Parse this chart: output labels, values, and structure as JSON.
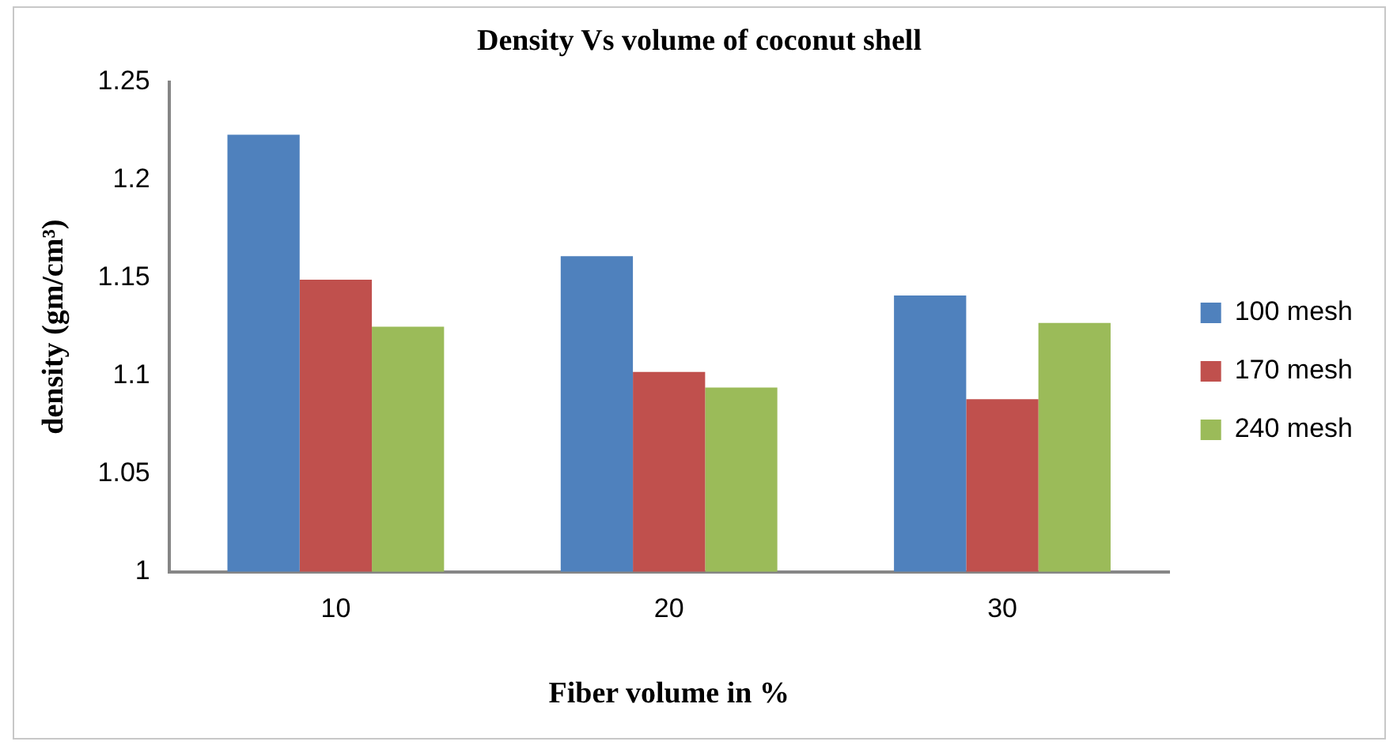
{
  "chart_data": {
    "type": "bar",
    "title": "Density Vs volume of coconut shell",
    "xlabel": "Fiber volume in %",
    "ylabel": "density (gm/cm³)",
    "categories": [
      "10",
      "20",
      "30"
    ],
    "series": [
      {
        "name": "100 mesh",
        "color": "#4f81bd",
        "values": [
          1.223,
          1.161,
          1.141
        ]
      },
      {
        "name": "170 mesh",
        "color": "#c0504d",
        "values": [
          1.149,
          1.102,
          1.088
        ]
      },
      {
        "name": "240 mesh",
        "color": "#9bbb59",
        "values": [
          1.125,
          1.094,
          1.127
        ]
      }
    ],
    "ylim": [
      1,
      1.25
    ],
    "yticks": [
      1,
      1.05,
      1.1,
      1.15,
      1.2,
      1.25
    ],
    "grid": false,
    "legend": "right"
  }
}
